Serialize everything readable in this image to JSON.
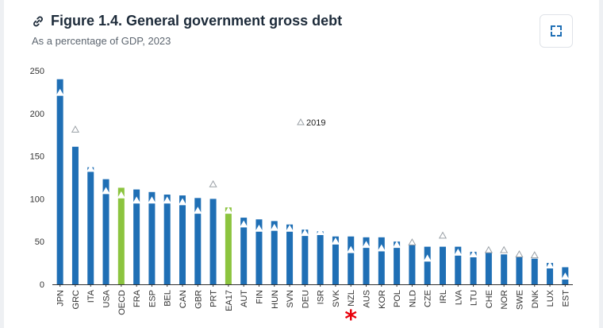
{
  "header": {
    "title": "Figure 1.4. General government gross debt",
    "subtitle": "As a percentage of GDP, 2023"
  },
  "icons": {
    "title_icon": "link-icon",
    "expand_icon": "expand-icon"
  },
  "colors": {
    "bar": "#1f6fb5",
    "highlight": "#8cc43f",
    "marker": "#ffffff",
    "asterisk": "#e8000b"
  },
  "chart_data": {
    "type": "bar",
    "ylim": [
      0,
      250
    ],
    "yticks": [
      0,
      50,
      100,
      150,
      200,
      250
    ],
    "legend": {
      "label": "2019",
      "placement": "top-center"
    },
    "annotation": {
      "label": "*",
      "category": "NZL"
    },
    "categories": [
      "JPN",
      "GRC",
      "ITA",
      "USA",
      "OECD",
      "FRA",
      "ESP",
      "BEL",
      "CAN",
      "GBR",
      "PRT",
      "EA17",
      "AUT",
      "FIN",
      "HUN",
      "SVN",
      "DEU",
      "ISR",
      "SVK",
      "NZL",
      "AUS",
      "KOR",
      "POL",
      "NLD",
      "CZE",
      "IRL",
      "LVA",
      "LTU",
      "CHE",
      "NOR",
      "SWE",
      "DNK",
      "LUX",
      "EST"
    ],
    "highlighted": [
      "OECD",
      "EA17"
    ],
    "series": [
      {
        "name": "2023",
        "values": [
          240,
          161,
          137,
          123,
          113,
          111,
          108,
          105,
          104,
          101,
          100,
          90,
          78,
          76,
          74,
          70,
          64,
          62,
          56,
          56,
          55,
          55,
          50,
          46,
          44,
          44,
          44,
          38,
          37,
          35,
          32,
          30,
          25,
          20
        ]
      },
      {
        "name": "2019",
        "values": [
          224,
          181,
          135,
          109,
          104,
          98,
          98,
          98,
          96,
          86,
          117,
          86,
          70,
          65,
          66,
          65,
          60,
          61,
          50,
          40,
          46,
          42,
          46,
          49,
          30,
          57,
          37,
          35,
          40,
          40,
          35,
          34,
          22,
          9
        ]
      }
    ]
  }
}
